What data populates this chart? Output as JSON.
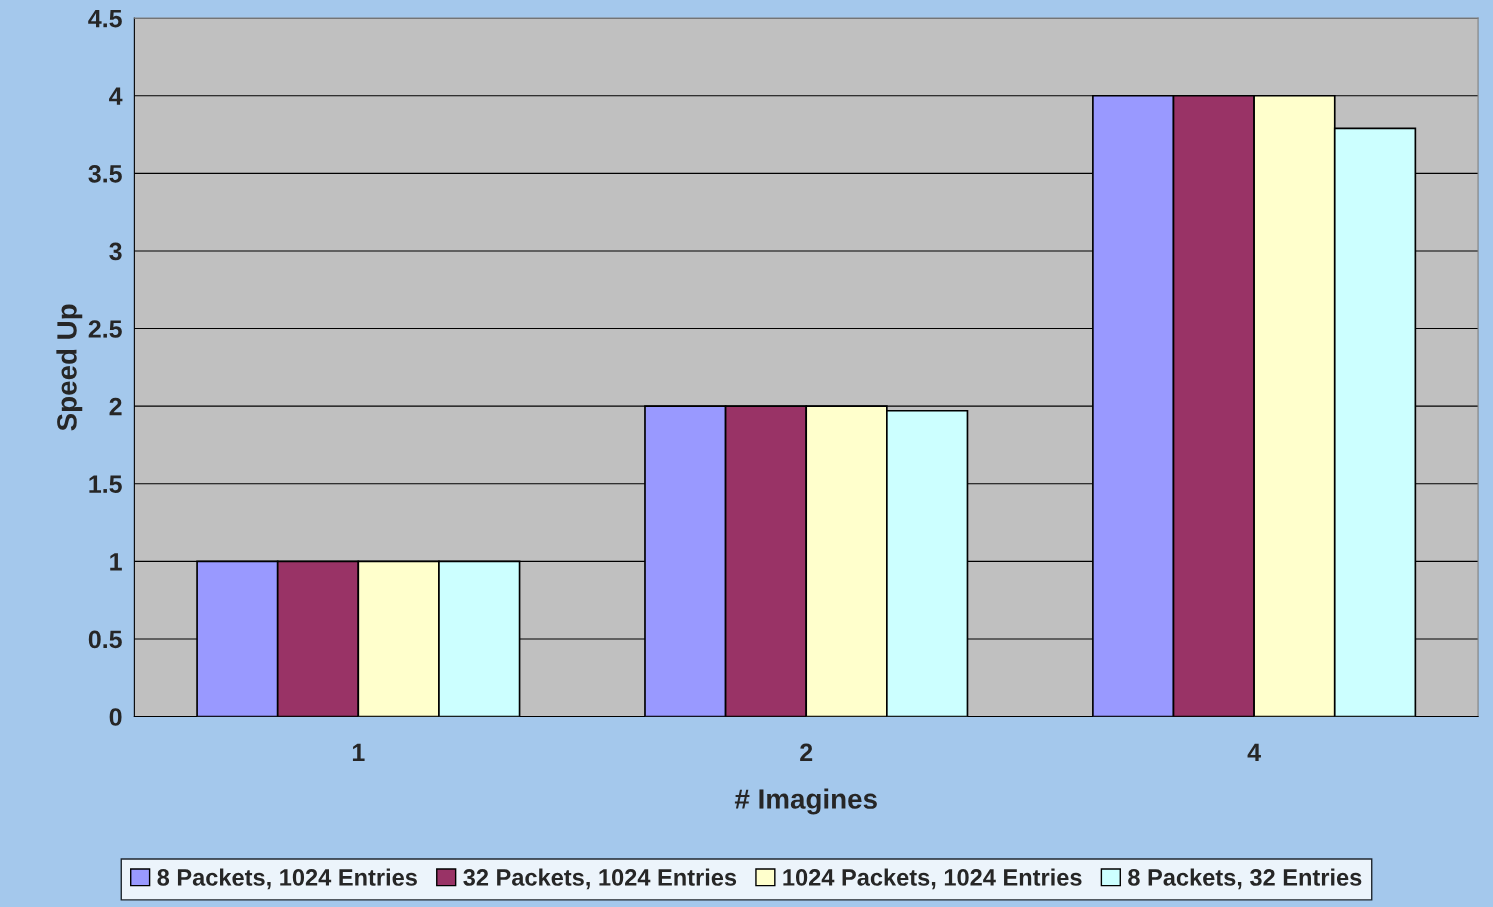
{
  "chart_data": {
    "type": "bar",
    "xlabel": "# Imagines",
    "ylabel": "Speed Up",
    "categories": [
      "1",
      "2",
      "4"
    ],
    "series": [
      {
        "name": "8 Packets, 1024 Entries",
        "color": "#9999ff",
        "values": [
          1,
          2,
          4
        ]
      },
      {
        "name": "32 Packets, 1024 Entries",
        "color": "#993366",
        "values": [
          1,
          2,
          4
        ]
      },
      {
        "name": "1024 Packets, 1024 Entries",
        "color": "#ffffcc",
        "values": [
          1,
          2,
          4
        ]
      },
      {
        "name": "8 Packets, 32 Entries",
        "color": "#ccffff",
        "values": [
          1,
          1.97,
          3.79
        ]
      }
    ],
    "ylim": [
      0,
      4.5
    ],
    "yticks": [
      0,
      0.5,
      1,
      1.5,
      2,
      2.5,
      3,
      3.5,
      4,
      4.5
    ],
    "grid": "y",
    "legend": "bottom"
  }
}
